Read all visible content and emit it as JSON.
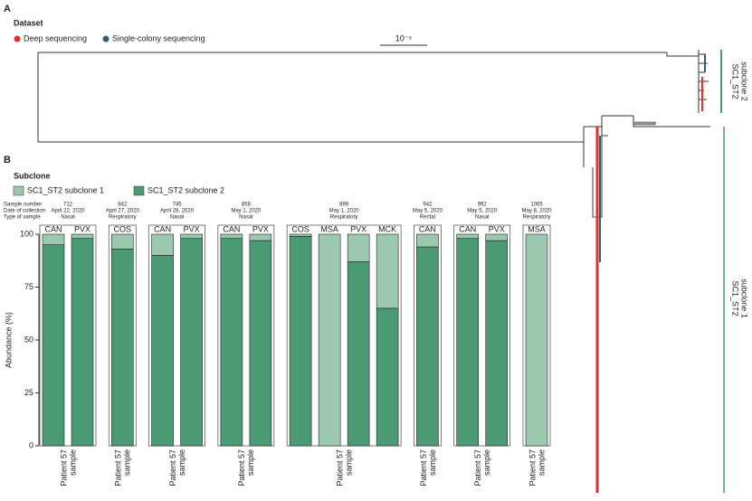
{
  "tree": {
    "label": "A",
    "legend_title": "Dataset",
    "legend": [
      {
        "name": "Deep sequencing",
        "color": "#e0312b"
      },
      {
        "name": "Single-colony sequencing",
        "color": "#2f5f6e"
      }
    ],
    "scale_label": "10⁻⁵",
    "clades": [
      {
        "line1": "SC1_ST2",
        "line2": "subclone 2"
      },
      {
        "line1": "SC1_ST2",
        "line2": "subclone 1"
      }
    ]
  },
  "chart_data": {
    "type": "bar",
    "stacked": true,
    "label": "B",
    "legend_title": "Subclone",
    "row_headers": [
      "Sample number",
      "Date of collection",
      "Type of sample"
    ],
    "groups": [
      {
        "number": "712",
        "date": "April 22, 2020",
        "sample_type": "Nasal",
        "categories": [
          "CAN",
          "PVX"
        ]
      },
      {
        "number": "842",
        "date": "April 27, 2020",
        "sample_type": "Respiratory",
        "categories": [
          "COS"
        ]
      },
      {
        "number": "745",
        "date": "April 28, 2020",
        "sample_type": "Nasal",
        "categories": [
          "CAN",
          "PVX"
        ]
      },
      {
        "number": "858",
        "date": "May 1, 2020",
        "sample_type": "Nasal",
        "categories": [
          "CAN",
          "PVX"
        ]
      },
      {
        "number": "899",
        "date": "May 1, 2020",
        "sample_type": "Respiratory",
        "categories": [
          "COS",
          "MSA",
          "PVX",
          "MCK"
        ]
      },
      {
        "number": "942",
        "date": "May 5, 2020",
        "sample_type": "Rectal",
        "categories": [
          "CAN"
        ]
      },
      {
        "number": "992",
        "date": "May 5, 2020",
        "sample_type": "Nasal",
        "categories": [
          "CAN",
          "PVX"
        ]
      },
      {
        "number": "1065",
        "date": "May 8, 2020",
        "sample_type": "Respiratory",
        "categories": [
          "MSA"
        ]
      }
    ],
    "series": [
      {
        "name": "SC1_ST2 subclone 1",
        "color": "#9dc8b0",
        "values": [
          5,
          2,
          7,
          10,
          2,
          2,
          3,
          1,
          100,
          13,
          35,
          6,
          2,
          3,
          100
        ]
      },
      {
        "name": "SC1_ST2 subclone 2",
        "color": "#4a9a74",
        "values": [
          95,
          98,
          93,
          90,
          98,
          98,
          97,
          99,
          0,
          87,
          65,
          94,
          98,
          97,
          0
        ]
      }
    ],
    "y_label": "Abundance (%)",
    "x_label_lines": [
      "Patient 57",
      "sample"
    ],
    "ylim": [
      0,
      100
    ],
    "yticks": [
      0,
      25,
      50,
      75,
      100
    ]
  }
}
